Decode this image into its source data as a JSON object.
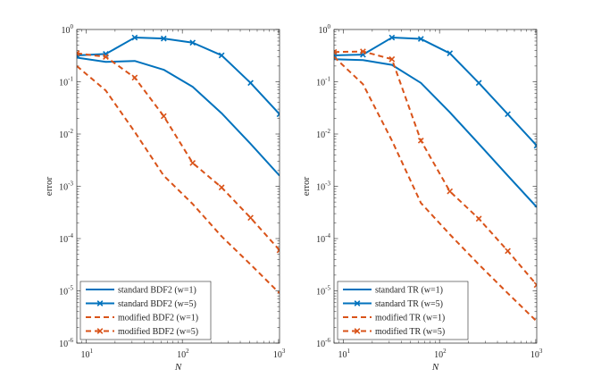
{
  "chart_data": [
    {
      "type": "line",
      "scale": {
        "x": "log",
        "y": "log"
      },
      "xlim": [
        8,
        1024
      ],
      "ylim": [
        1e-06,
        1
      ],
      "xlabel": "N",
      "ylabel": "error",
      "xticks": [
        {
          "base": "10",
          "exp": "1",
          "value": 10
        },
        {
          "base": "10",
          "exp": "2",
          "value": 100
        },
        {
          "base": "10",
          "exp": "3",
          "value": 1000
        }
      ],
      "yticks": [
        {
          "base": "10",
          "exp": "-6",
          "value": 1e-06
        },
        {
          "base": "10",
          "exp": "-5",
          "value": 1e-05
        },
        {
          "base": "10",
          "exp": "-4",
          "value": 0.0001
        },
        {
          "base": "10",
          "exp": "-3",
          "value": 0.001
        },
        {
          "base": "10",
          "exp": "-2",
          "value": 0.01
        },
        {
          "base": "10",
          "exp": "-1",
          "value": 0.1
        },
        {
          "base": "10",
          "exp": "0",
          "value": 1
        }
      ],
      "legend": "bottom-left",
      "series": [
        {
          "name": "standard BDF2 (w=1)",
          "style": "solid",
          "marker": "none",
          "color": "#0072BD",
          "x": [
            8,
            16,
            32,
            64,
            128,
            256,
            512,
            1024
          ],
          "y": [
            0.29,
            0.24,
            0.25,
            0.17,
            0.08,
            0.025,
            0.0065,
            0.0016
          ]
        },
        {
          "name": "standard BDF2 (w=5)",
          "style": "solid",
          "marker": "x",
          "color": "#0072BD",
          "x": [
            8,
            16,
            32,
            64,
            128,
            256,
            512,
            1024
          ],
          "y": [
            0.32,
            0.34,
            0.7,
            0.67,
            0.56,
            0.32,
            0.095,
            0.024
          ]
        },
        {
          "name": "modified BDF2 (w=1)",
          "style": "dashed",
          "marker": "none",
          "color": "#D95319",
          "x": [
            8,
            16,
            32,
            64,
            128,
            256,
            512,
            1024
          ],
          "y": [
            0.2,
            0.068,
            0.011,
            0.0016,
            0.00046,
            0.00011,
            3.2e-05,
            9e-06
          ]
        },
        {
          "name": "modified BDF2 (w=5)",
          "style": "dashed",
          "marker": "x",
          "color": "#D95319",
          "x": [
            8,
            16,
            32,
            64,
            128,
            256,
            512,
            1024
          ],
          "y": [
            0.35,
            0.3,
            0.12,
            0.022,
            0.0028,
            0.00095,
            0.00025,
            6e-05
          ]
        }
      ]
    },
    {
      "type": "line",
      "scale": {
        "x": "log",
        "y": "log"
      },
      "xlim": [
        8,
        1024
      ],
      "ylim": [
        1e-06,
        1
      ],
      "xlabel": "N",
      "ylabel": "error",
      "xticks": [
        {
          "base": "10",
          "exp": "1",
          "value": 10
        },
        {
          "base": "10",
          "exp": "2",
          "value": 100
        },
        {
          "base": "10",
          "exp": "3",
          "value": 1000
        }
      ],
      "yticks": [
        {
          "base": "10",
          "exp": "-6",
          "value": 1e-06
        },
        {
          "base": "10",
          "exp": "-5",
          "value": 1e-05
        },
        {
          "base": "10",
          "exp": "-4",
          "value": 0.0001
        },
        {
          "base": "10",
          "exp": "-3",
          "value": 0.001
        },
        {
          "base": "10",
          "exp": "-2",
          "value": 0.01
        },
        {
          "base": "10",
          "exp": "-1",
          "value": 0.1
        },
        {
          "base": "10",
          "exp": "0",
          "value": 1
        }
      ],
      "legend": "bottom-left",
      "series": [
        {
          "name": "standard TR (w=1)",
          "style": "solid",
          "marker": "none",
          "color": "#0072BD",
          "x": [
            8,
            16,
            32,
            64,
            128,
            256,
            512,
            1024
          ],
          "y": [
            0.27,
            0.26,
            0.21,
            0.095,
            0.026,
            0.0065,
            0.0016,
            0.0004
          ]
        },
        {
          "name": "standard TR (w=5)",
          "style": "solid",
          "marker": "x",
          "color": "#0072BD",
          "x": [
            8,
            16,
            32,
            64,
            128,
            256,
            512,
            1024
          ],
          "y": [
            0.32,
            0.33,
            0.7,
            0.66,
            0.35,
            0.095,
            0.024,
            0.006
          ]
        },
        {
          "name": "modified TR (w=1)",
          "style": "dashed",
          "marker": "none",
          "color": "#D95319",
          "x": [
            8,
            16,
            32,
            64,
            128,
            256,
            512,
            1024
          ],
          "y": [
            0.3,
            0.09,
            0.0075,
            0.00048,
            0.00012,
            3.2e-05,
            9e-06,
            2.6e-06
          ]
        },
        {
          "name": "modified TR (w=5)",
          "style": "dashed",
          "marker": "x",
          "color": "#D95319",
          "x": [
            8,
            16,
            32,
            64,
            128,
            256,
            512,
            1024
          ],
          "y": [
            0.37,
            0.38,
            0.27,
            0.0075,
            0.0008,
            0.00024,
            5.8e-05,
            1.3e-05
          ]
        }
      ]
    }
  ]
}
